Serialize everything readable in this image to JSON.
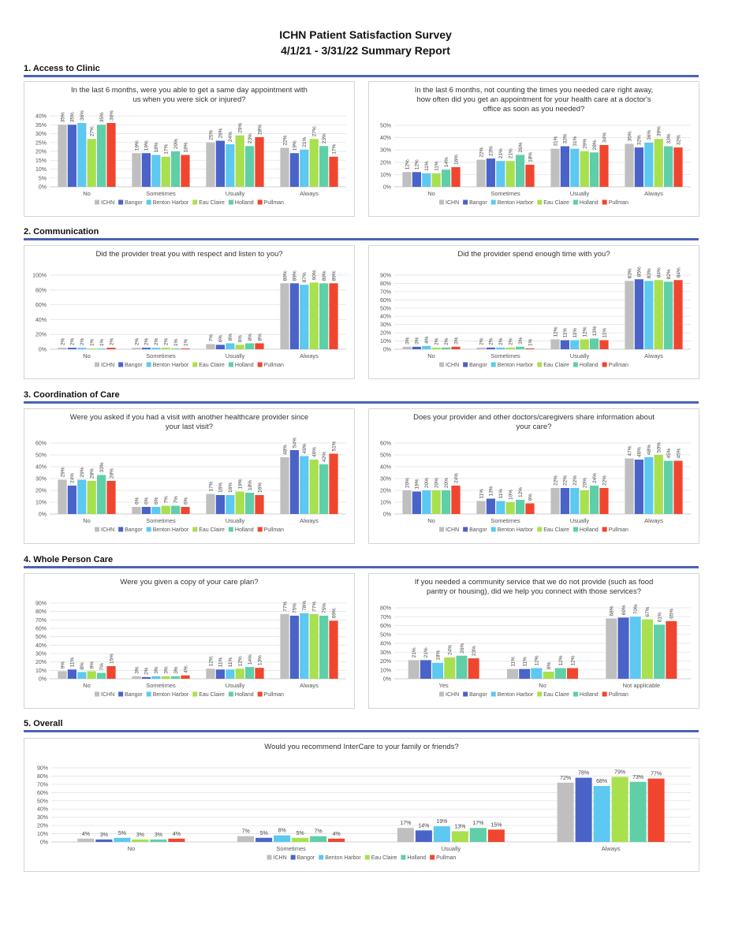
{
  "report": {
    "title_line1": "ICHN Patient Satisfaction Survey",
    "title_line2": "4/1/21 - 3/31/22 Summary Report"
  },
  "legend_labels": [
    "ICHN",
    "Bangor",
    "Benton Harbor",
    "Eau Claire",
    "Holland",
    "Pullman"
  ],
  "series_colors": [
    "#bfbfbf",
    "#4a63c8",
    "#5dc8f0",
    "#a8e04e",
    "#5fcfa8",
    "#f04630"
  ],
  "sections": [
    {
      "title": "1. Access to Clinic"
    },
    {
      "title": "2. Communication"
    },
    {
      "title": "3. Coordination of Care"
    },
    {
      "title": "4. Whole Person Care"
    },
    {
      "title": "5. Overall"
    }
  ],
  "chart_data": [
    {
      "type": "bar",
      "title": "In the last 6 months, were you able to get a same day appointment with us when you were sick or injured?",
      "categories": [
        "No",
        "Sometimes",
        "Usually",
        "Always"
      ],
      "ylim": [
        0,
        40
      ],
      "ytick_step": 5,
      "grid": true,
      "legend": "bottom",
      "series": [
        {
          "name": "ICHN",
          "values": [
            35,
            19,
            25,
            22
          ]
        },
        {
          "name": "Bangor",
          "values": [
            35,
            19,
            26,
            19
          ]
        },
        {
          "name": "Benton Harbor",
          "values": [
            36,
            18,
            24,
            21
          ]
        },
        {
          "name": "Eau Claire",
          "values": [
            27,
            17,
            29,
            27
          ]
        },
        {
          "name": "Holland",
          "values": [
            35,
            20,
            23,
            23
          ]
        },
        {
          "name": "Pullman",
          "values": [
            36,
            18,
            28,
            17
          ]
        }
      ]
    },
    {
      "type": "bar",
      "title": "In the last 6 months, not counting the times you needed care right away, how often did you get an appointment for your health care at a doctor's office as soon as you needed?",
      "categories": [
        "No",
        "Sometimes",
        "Usually",
        "Always"
      ],
      "ylim": [
        0,
        50
      ],
      "ytick_step": 10,
      "grid": true,
      "legend": "bottom",
      "series": [
        {
          "name": "ICHN",
          "values": [
            12,
            22,
            31,
            35
          ]
        },
        {
          "name": "Bangor",
          "values": [
            12,
            23,
            33,
            32
          ]
        },
        {
          "name": "Benton Harbor",
          "values": [
            11,
            21,
            31,
            36
          ]
        },
        {
          "name": "Eau Claire",
          "values": [
            11,
            21,
            29,
            39
          ]
        },
        {
          "name": "Holland",
          "values": [
            14,
            26,
            28,
            33
          ]
        },
        {
          "name": "Pullman",
          "values": [
            16,
            18,
            34,
            32
          ]
        }
      ]
    },
    {
      "type": "bar",
      "title": "Did the provider treat you with respect and listen to you?",
      "categories": [
        "No",
        "Sometimes",
        "Usually",
        "Always"
      ],
      "ylim": [
        0,
        100
      ],
      "ytick_step": 20,
      "grid": true,
      "legend": "bottom",
      "series": [
        {
          "name": "ICHN",
          "values": [
            2,
            2,
            7,
            89
          ]
        },
        {
          "name": "Bangor",
          "values": [
            2,
            2,
            6,
            89
          ]
        },
        {
          "name": "Benton Harbor",
          "values": [
            2,
            2,
            8,
            87
          ]
        },
        {
          "name": "Eau Claire",
          "values": [
            1,
            2,
            6,
            90
          ]
        },
        {
          "name": "Holland",
          "values": [
            1,
            1,
            8,
            89
          ]
        },
        {
          "name": "Pullman",
          "values": [
            2,
            1,
            8,
            89
          ]
        }
      ]
    },
    {
      "type": "bar",
      "title": "Did the provider spend enough time with you?",
      "categories": [
        "No",
        "Sometimes",
        "Usually",
        "Always"
      ],
      "ylim": [
        0,
        90
      ],
      "ytick_step": 10,
      "grid": true,
      "legend": "bottom",
      "series": [
        {
          "name": "ICHN",
          "values": [
            3,
            2,
            12,
            83
          ]
        },
        {
          "name": "Bangor",
          "values": [
            3,
            2,
            11,
            85
          ]
        },
        {
          "name": "Benton Harbor",
          "values": [
            4,
            2,
            11,
            83
          ]
        },
        {
          "name": "Eau Claire",
          "values": [
            2,
            2,
            12,
            84
          ]
        },
        {
          "name": "Holland",
          "values": [
            2,
            3,
            13,
            82
          ]
        },
        {
          "name": "Pullman",
          "values": [
            3,
            1,
            11,
            84
          ]
        }
      ]
    },
    {
      "type": "bar",
      "title": "Were you asked if you had a visit with another healthcare provider since your last visit?",
      "categories": [
        "No",
        "Sometimes",
        "Usually",
        "Always"
      ],
      "ylim": [
        0,
        60
      ],
      "ytick_step": 10,
      "grid": true,
      "legend": "bottom",
      "series": [
        {
          "name": "ICHN",
          "values": [
            29,
            6,
            17,
            48
          ]
        },
        {
          "name": "Bangor",
          "values": [
            24,
            6,
            16,
            54
          ]
        },
        {
          "name": "Benton Harbor",
          "values": [
            29,
            6,
            16,
            49
          ]
        },
        {
          "name": "Eau Claire",
          "values": [
            28,
            7,
            19,
            46
          ]
        },
        {
          "name": "Holland",
          "values": [
            33,
            7,
            18,
            42
          ]
        },
        {
          "name": "Pullman",
          "values": [
            28,
            6,
            16,
            51
          ]
        }
      ]
    },
    {
      "type": "bar",
      "title": "Does your provider and other doctors/caregivers share information about your care?",
      "categories": [
        "No",
        "Sometimes",
        "Usually",
        "Always"
      ],
      "ylim": [
        0,
        60
      ],
      "ytick_step": 10,
      "grid": true,
      "legend": "bottom",
      "series": [
        {
          "name": "ICHN",
          "values": [
            20,
            11,
            22,
            47
          ]
        },
        {
          "name": "Bangor",
          "values": [
            19,
            13,
            22,
            46
          ]
        },
        {
          "name": "Benton Harbor",
          "values": [
            20,
            11,
            22,
            48
          ]
        },
        {
          "name": "Eau Claire",
          "values": [
            20,
            10,
            20,
            50
          ]
        },
        {
          "name": "Holland",
          "values": [
            20,
            12,
            24,
            45
          ]
        },
        {
          "name": "Pullman",
          "values": [
            24,
            9,
            22,
            45
          ]
        }
      ]
    },
    {
      "type": "bar",
      "title": "Were you given a copy of your care plan?",
      "categories": [
        "No",
        "Sometimes",
        "Usually",
        "Always"
      ],
      "ylim": [
        0,
        90
      ],
      "ytick_step": 10,
      "grid": true,
      "legend": "bottom",
      "series": [
        {
          "name": "ICHN",
          "values": [
            9,
            3,
            12,
            77
          ]
        },
        {
          "name": "Bangor",
          "values": [
            11,
            2,
            11,
            75
          ]
        },
        {
          "name": "Benton Harbor",
          "values": [
            8,
            3,
            11,
            78
          ]
        },
        {
          "name": "Eau Claire",
          "values": [
            9,
            3,
            12,
            77
          ]
        },
        {
          "name": "Holland",
          "values": [
            7,
            3,
            14,
            75
          ]
        },
        {
          "name": "Pullman",
          "values": [
            15,
            4,
            13,
            69
          ]
        }
      ]
    },
    {
      "type": "bar",
      "title": "If you needed a community service that we do not provide (such as food pantry or housing), did we help you connect with those services?",
      "categories": [
        "Yes",
        "No",
        "Not applicable"
      ],
      "ylim": [
        0,
        80
      ],
      "ytick_step": 10,
      "grid": true,
      "legend": "bottom",
      "series": [
        {
          "name": "ICHN",
          "values": [
            21,
            11,
            68
          ]
        },
        {
          "name": "Bangor",
          "values": [
            21,
            11,
            69
          ]
        },
        {
          "name": "Benton Harbor",
          "values": [
            18,
            12,
            70
          ]
        },
        {
          "name": "Eau Claire",
          "values": [
            24,
            8,
            67
          ]
        },
        {
          "name": "Holland",
          "values": [
            26,
            12,
            61
          ]
        },
        {
          "name": "Pullman",
          "values": [
            23,
            12,
            65
          ]
        }
      ]
    },
    {
      "type": "bar",
      "title": "Would you recommend InterCare to your family or friends?",
      "categories": [
        "No",
        "Sometimes",
        "Usually",
        "Always"
      ],
      "ylim": [
        0,
        90
      ],
      "ytick_step": 10,
      "grid": true,
      "legend": "bottom",
      "series": [
        {
          "name": "ICHN",
          "values": [
            4,
            7,
            17,
            72
          ]
        },
        {
          "name": "Bangor",
          "values": [
            3,
            5,
            14,
            78
          ]
        },
        {
          "name": "Benton Harbor",
          "values": [
            5,
            8,
            19,
            68
          ]
        },
        {
          "name": "Eau Claire",
          "values": [
            3,
            5,
            13,
            79
          ]
        },
        {
          "name": "Holland",
          "values": [
            3,
            7,
            17,
            73
          ]
        },
        {
          "name": "Pullman",
          "values": [
            4,
            4,
            15,
            77
          ]
        }
      ]
    }
  ]
}
